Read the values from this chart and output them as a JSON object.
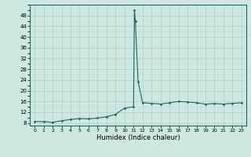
{
  "x_vals": [
    0,
    1,
    2,
    3,
    4,
    5,
    6,
    7,
    8,
    9,
    10,
    11.0,
    11.1,
    11.2,
    11.5,
    12,
    13,
    14,
    15,
    16,
    17,
    18,
    19,
    20,
    21,
    22,
    23
  ],
  "y_vals": [
    8.5,
    8.5,
    8.2,
    8.8,
    9.3,
    9.6,
    9.5,
    9.8,
    10.3,
    11.2,
    13.5,
    14.0,
    50.0,
    46.0,
    23.5,
    15.5,
    15.3,
    15.0,
    15.5,
    16.0,
    15.8,
    15.5,
    15.0,
    15.2,
    15.0,
    15.3,
    15.5
  ],
  "line_color": "#1a6b5a",
  "bg_color": "#cce8e0",
  "grid_color": "#b0d0c8",
  "xlabel": "Humidex (Indice chaleur)",
  "ylim": [
    7,
    52
  ],
  "xlim": [
    -0.5,
    23.5
  ]
}
